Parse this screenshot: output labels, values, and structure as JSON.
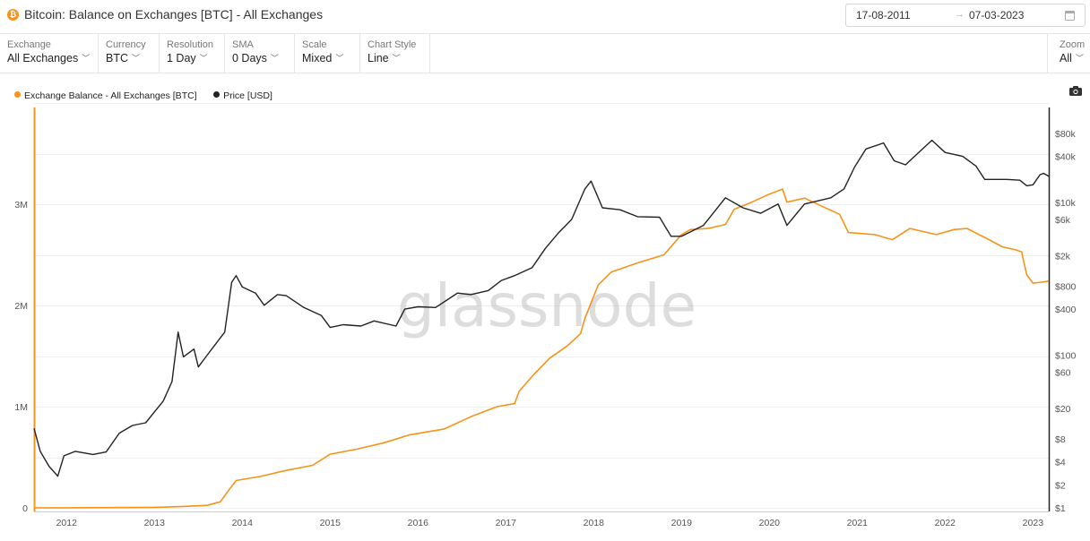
{
  "header": {
    "coin_glyph": "₿",
    "title": "Bitcoin: Balance on Exchanges [BTC] - All Exchanges",
    "date_start": "17-08-2011",
    "date_arrow": "→",
    "date_end": "07-03-2023"
  },
  "toolbar": {
    "exchange": {
      "label": "Exchange",
      "value": "All Exchanges"
    },
    "currency": {
      "label": "Currency",
      "value": "BTC"
    },
    "resolution": {
      "label": "Resolution",
      "value": "1 Day"
    },
    "sma": {
      "label": "SMA",
      "value": "0 Days"
    },
    "scale": {
      "label": "Scale",
      "value": "Mixed"
    },
    "chart_style": {
      "label": "Chart Style",
      "value": "Line"
    },
    "zoom": {
      "label": "Zoom",
      "value": "All"
    }
  },
  "icons": {
    "coin": "bitcoin-icon",
    "calendar": "calendar-icon",
    "camera": "camera-icon",
    "chevron": "chevron-down-icon"
  },
  "chart_data": {
    "type": "line",
    "watermark": "glassnode",
    "x_ticks": [
      "2012",
      "2013",
      "2014",
      "2015",
      "2016",
      "2017",
      "2018",
      "2019",
      "2020",
      "2021",
      "2022",
      "2023"
    ],
    "y_left": {
      "scale": "linear",
      "range": [
        0,
        4000000
      ],
      "ticks": [
        {
          "value": 0,
          "label": "0"
        },
        {
          "value": 1000000,
          "label": "1M"
        },
        {
          "value": 2000000,
          "label": "2M"
        },
        {
          "value": 3000000,
          "label": "3M"
        }
      ]
    },
    "y_right": {
      "scale": "log",
      "range": [
        1,
        200000
      ],
      "ticks": [
        {
          "value": 1,
          "label": "$1"
        },
        {
          "value": 2,
          "label": "$2"
        },
        {
          "value": 4,
          "label": "$4"
        },
        {
          "value": 8,
          "label": "$8"
        },
        {
          "value": 20,
          "label": "$20"
        },
        {
          "value": 60,
          "label": "$60"
        },
        {
          "value": 100,
          "label": "$100"
        },
        {
          "value": 400,
          "label": "$400"
        },
        {
          "value": 800,
          "label": "$800"
        },
        {
          "value": 2000,
          "label": "$2k"
        },
        {
          "value": 6000,
          "label": "$6k"
        },
        {
          "value": 10000,
          "label": "$10k"
        },
        {
          "value": 40000,
          "label": "$40k"
        },
        {
          "value": 80000,
          "label": "$80k"
        }
      ]
    },
    "series": [
      {
        "name": "Exchange Balance - All Exchanges [BTC]",
        "color": "#f7931a",
        "axis": "left",
        "points": [
          [
            2011.63,
            0
          ],
          [
            2012.0,
            1000
          ],
          [
            2012.5,
            2500
          ],
          [
            2013.0,
            5000
          ],
          [
            2013.3,
            12000
          ],
          [
            2013.6,
            25000
          ],
          [
            2013.75,
            60000
          ],
          [
            2013.85,
            180000
          ],
          [
            2013.93,
            270000
          ],
          [
            2014.2,
            310000
          ],
          [
            2014.5,
            370000
          ],
          [
            2014.8,
            420000
          ],
          [
            2015.0,
            530000
          ],
          [
            2015.3,
            580000
          ],
          [
            2015.6,
            640000
          ],
          [
            2015.9,
            720000
          ],
          [
            2016.3,
            780000
          ],
          [
            2016.6,
            900000
          ],
          [
            2016.9,
            1000000
          ],
          [
            2017.1,
            1030000
          ],
          [
            2017.15,
            1150000
          ],
          [
            2017.3,
            1300000
          ],
          [
            2017.5,
            1480000
          ],
          [
            2017.7,
            1600000
          ],
          [
            2017.85,
            1720000
          ],
          [
            2017.9,
            1870000
          ],
          [
            2018.05,
            2200000
          ],
          [
            2018.2,
            2330000
          ],
          [
            2018.5,
            2420000
          ],
          [
            2018.8,
            2500000
          ],
          [
            2018.9,
            2600000
          ],
          [
            2019.0,
            2700000
          ],
          [
            2019.1,
            2750000
          ],
          [
            2019.3,
            2760000
          ],
          [
            2019.5,
            2800000
          ],
          [
            2019.6,
            2950000
          ],
          [
            2019.8,
            3020000
          ],
          [
            2020.0,
            3100000
          ],
          [
            2020.15,
            3150000
          ],
          [
            2020.2,
            3020000
          ],
          [
            2020.4,
            3060000
          ],
          [
            2020.6,
            2980000
          ],
          [
            2020.8,
            2900000
          ],
          [
            2020.9,
            2720000
          ],
          [
            2021.2,
            2700000
          ],
          [
            2021.4,
            2650000
          ],
          [
            2021.6,
            2760000
          ],
          [
            2021.9,
            2700000
          ],
          [
            2022.1,
            2750000
          ],
          [
            2022.25,
            2760000
          ],
          [
            2022.5,
            2650000
          ],
          [
            2022.65,
            2580000
          ],
          [
            2022.8,
            2550000
          ],
          [
            2022.87,
            2530000
          ],
          [
            2022.93,
            2300000
          ],
          [
            2023.0,
            2220000
          ],
          [
            2023.1,
            2230000
          ],
          [
            2023.18,
            2240000
          ]
        ]
      },
      {
        "name": "Price [USD]",
        "color": "#222222",
        "axis": "right",
        "points": [
          [
            2011.63,
            11
          ],
          [
            2011.7,
            5.5
          ],
          [
            2011.8,
            3.5
          ],
          [
            2011.9,
            2.6
          ],
          [
            2011.97,
            4.8
          ],
          [
            2012.1,
            5.5
          ],
          [
            2012.3,
            5
          ],
          [
            2012.45,
            5.4
          ],
          [
            2012.6,
            9.5
          ],
          [
            2012.75,
            12
          ],
          [
            2012.9,
            13
          ],
          [
            2013.1,
            25
          ],
          [
            2013.2,
            45
          ],
          [
            2013.27,
            200
          ],
          [
            2013.33,
            95
          ],
          [
            2013.45,
            120
          ],
          [
            2013.5,
            70
          ],
          [
            2013.6,
            100
          ],
          [
            2013.8,
            200
          ],
          [
            2013.88,
            900
          ],
          [
            2013.93,
            1100
          ],
          [
            2014.0,
            780
          ],
          [
            2014.15,
            650
          ],
          [
            2014.25,
            450
          ],
          [
            2014.4,
            620
          ],
          [
            2014.5,
            600
          ],
          [
            2014.7,
            420
          ],
          [
            2014.9,
            330
          ],
          [
            2015.0,
            230
          ],
          [
            2015.15,
            250
          ],
          [
            2015.35,
            240
          ],
          [
            2015.5,
            280
          ],
          [
            2015.75,
            240
          ],
          [
            2015.85,
            400
          ],
          [
            2016.0,
            430
          ],
          [
            2016.2,
            420
          ],
          [
            2016.45,
            650
          ],
          [
            2016.6,
            620
          ],
          [
            2016.8,
            700
          ],
          [
            2016.95,
            950
          ],
          [
            2017.1,
            1100
          ],
          [
            2017.3,
            1400
          ],
          [
            2017.45,
            2500
          ],
          [
            2017.6,
            4000
          ],
          [
            2017.75,
            6000
          ],
          [
            2017.9,
            15000
          ],
          [
            2017.97,
            19000
          ],
          [
            2018.1,
            8500
          ],
          [
            2018.3,
            8000
          ],
          [
            2018.5,
            6500
          ],
          [
            2018.75,
            6400
          ],
          [
            2018.88,
            3600
          ],
          [
            2019.0,
            3600
          ],
          [
            2019.25,
            5000
          ],
          [
            2019.5,
            11500
          ],
          [
            2019.7,
            8500
          ],
          [
            2019.9,
            7200
          ],
          [
            2020.1,
            9500
          ],
          [
            2020.2,
            5000
          ],
          [
            2020.4,
            9500
          ],
          [
            2020.7,
            11500
          ],
          [
            2020.85,
            15000
          ],
          [
            2020.97,
            29000
          ],
          [
            2021.1,
            50000
          ],
          [
            2021.3,
            60000
          ],
          [
            2021.42,
            35000
          ],
          [
            2021.55,
            31000
          ],
          [
            2021.7,
            45000
          ],
          [
            2021.85,
            65000
          ],
          [
            2022.0,
            45000
          ],
          [
            2022.2,
            40000
          ],
          [
            2022.35,
            30000
          ],
          [
            2022.45,
            20000
          ],
          [
            2022.7,
            20000
          ],
          [
            2022.85,
            19500
          ],
          [
            2022.93,
            16500
          ],
          [
            2023.0,
            17000
          ],
          [
            2023.08,
            23000
          ],
          [
            2023.12,
            24000
          ],
          [
            2023.18,
            22000
          ]
        ]
      }
    ],
    "grid": "horizontal",
    "legend_position": "top-left"
  }
}
